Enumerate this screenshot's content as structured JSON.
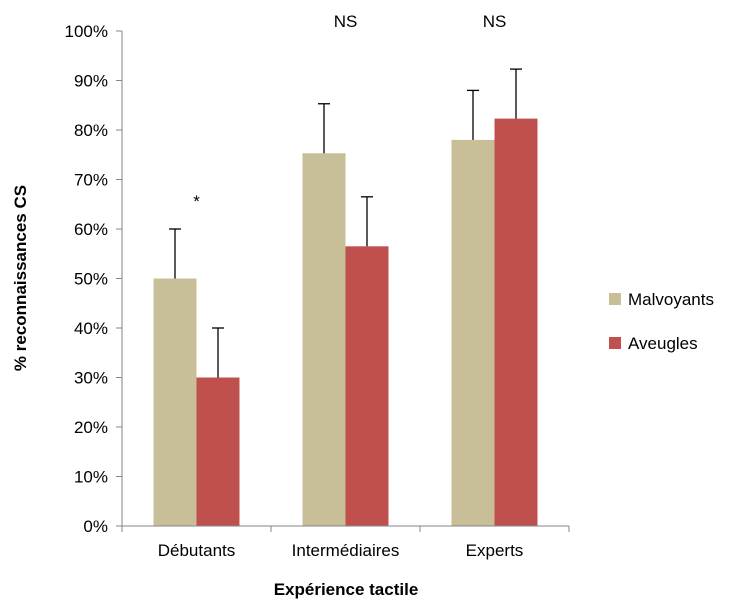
{
  "chart_data": {
    "type": "bar",
    "title": "",
    "xlabel": "Expérience tactile",
    "ylabel": "% reconnaissances CS",
    "ylim": [
      0,
      100
    ],
    "yticks": [
      "0%",
      "10%",
      "20%",
      "30%",
      "40%",
      "50%",
      "60%",
      "70%",
      "80%",
      "90%",
      "100%"
    ],
    "categories": [
      "Débutants",
      "Intermédiaires",
      "Experts"
    ],
    "series": [
      {
        "name": "Malvoyants",
        "color": "#c8bf98",
        "values": [
          50,
          75.3,
          78
        ],
        "errors": [
          10,
          10,
          10
        ]
      },
      {
        "name": "Aveugles",
        "color": "#c0504d",
        "values": [
          30,
          56.5,
          82.3
        ],
        "errors": [
          10,
          10,
          10
        ]
      }
    ],
    "annotations": [
      "*",
      "NS",
      "NS"
    ],
    "grid": false,
    "legend_position": "right"
  }
}
